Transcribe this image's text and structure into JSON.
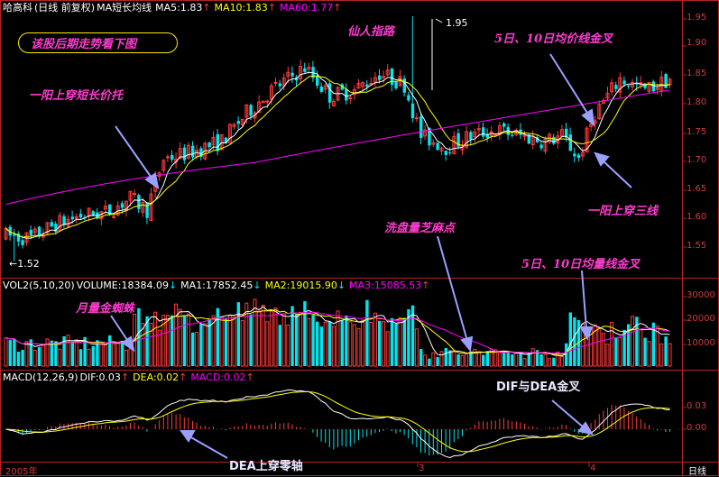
{
  "header": {
    "stock_name": "哈高科",
    "period": "(日线 前复权)",
    "indicator": "MA短长均线",
    "ma5": "MA5:1.83",
    "ma10": "MA10:1.83",
    "ma60": "MA60:1.77",
    "arrow_up": "↑",
    "arrow_down": "↓"
  },
  "volume_header": {
    "name": "VOL2(5,10,20)",
    "volume": "VOLUME:18384.09",
    "ma1": "MA1:17852.45",
    "ma2": "MA2:19015.90",
    "ma3": "MA3:15085.53"
  },
  "macd_header": {
    "name": "MACD(12,26,9)",
    "dif": "DIF:0.03",
    "dea": "DEA:0.02",
    "macd": "MACD:0.02"
  },
  "annotations": {
    "look_later": "该股后期走势看下图",
    "immortal": "仙人指路",
    "ma_cross": "5日、10日均价线金叉",
    "one_yang_support": "一阳上穿短长价托",
    "one_yang_three": "一阳上穿三线",
    "wash_volume": "洗盘量芝麻点",
    "vol_cross": "5日、10日均量线金叉",
    "monthly_spider": "月量金蜘蛛",
    "dif_dea": "DIF与DEA金叉",
    "dea_zero": "DEA上穿零轴"
  },
  "price_labels": {
    "high": "1.95",
    "low": "←1.52"
  },
  "price_ticks": [
    "1.95",
    "1.90",
    "1.85",
    "1.80",
    "1.75",
    "1.70",
    "1.65",
    "1.60",
    "1.55"
  ],
  "volume_ticks": [
    "30000",
    "20000",
    "10000"
  ],
  "macd_ticks": [
    "0.03",
    "0.00"
  ],
  "x_axis": {
    "year": "2005年",
    "m3": "3",
    "m4": "4",
    "period": "日线"
  },
  "colors": {
    "up": "#ff3a3a",
    "down": "#00e5ee",
    "ma_white": "#ffffff",
    "ma_yellow": "#ffff00",
    "ma_magenta": "#ff00ff",
    "annot": "#ff3ad0",
    "arrow": "#9aa0ff"
  },
  "chart_data": {
    "type": "candlestick",
    "price_range": [
      1.52,
      1.95
    ],
    "high": 1.95,
    "low": 1.52,
    "axis_labels": [
      "1.95",
      "1.90",
      "1.85",
      "1.80",
      "1.75",
      "1.70",
      "1.65",
      "1.60",
      "1.55"
    ],
    "last_ma5": 1.83,
    "last_ma10": 1.83,
    "last_ma60": 1.77,
    "last_volume": 18384.09,
    "last_dif": 0.03,
    "last_dea": 0.02,
    "last_macd": 0.02
  }
}
